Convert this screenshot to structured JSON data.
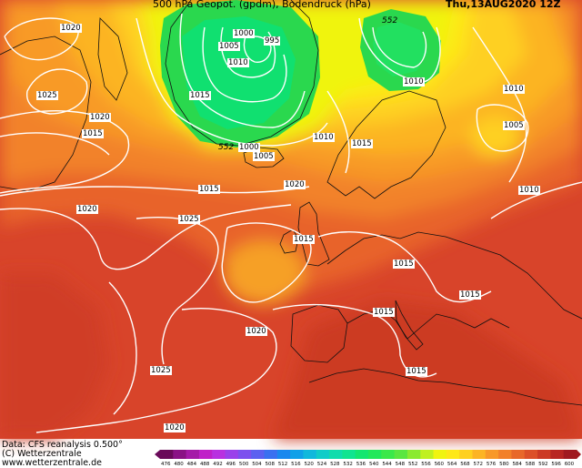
{
  "header": {
    "title": "500 hPa Geopot. (gpdm), Bodendruck (hPa)",
    "datetime": "Thu,13AUG2020 12Z"
  },
  "footer": {
    "data_source": "Data: CFS reanalysis 0.500°",
    "copyright": "(C) Wetterzentrale",
    "url": "www.wetterzentrale.de"
  },
  "isobar_labels": [
    {
      "text": "1020"
    },
    {
      "text": "1025"
    },
    {
      "text": "1020"
    },
    {
      "text": "1015"
    },
    {
      "text": "1000"
    },
    {
      "text": "1005"
    },
    {
      "text": "995"
    },
    {
      "text": "1010"
    },
    {
      "text": "1015"
    },
    {
      "text": "1000"
    },
    {
      "text": "1005"
    },
    {
      "text": "1010"
    },
    {
      "text": "1015"
    },
    {
      "text": "1010"
    },
    {
      "text": "1010"
    },
    {
      "text": "1005"
    },
    {
      "text": "1010"
    },
    {
      "text": "1020"
    },
    {
      "text": "1015"
    },
    {
      "text": "1020"
    },
    {
      "text": "1025"
    },
    {
      "text": "1015"
    },
    {
      "text": "1015"
    },
    {
      "text": "1015"
    },
    {
      "text": "1015"
    },
    {
      "text": "1020"
    },
    {
      "text": "1025"
    },
    {
      "text": "1015"
    },
    {
      "text": "1020"
    }
  ],
  "geopotential_labels": [
    {
      "text": "552"
    },
    {
      "text": "552"
    }
  ],
  "color_scale": {
    "ticks": [
      "476",
      "480",
      "484",
      "488",
      "492",
      "496",
      "500",
      "504",
      "508",
      "512",
      "516",
      "520",
      "524",
      "528",
      "532",
      "536",
      "540",
      "544",
      "548",
      "552",
      "556",
      "560",
      "564",
      "568",
      "572",
      "576",
      "580",
      "584",
      "588",
      "592",
      "596",
      "600"
    ],
    "colors": [
      "#6a0a5a",
      "#8a1285",
      "#a51aa8",
      "#c020c8",
      "#b830e0",
      "#9a40ea",
      "#7c50ee",
      "#5c60f0",
      "#3a70f0",
      "#1a88ee",
      "#10a0e8",
      "#10b8dc",
      "#10ccc8",
      "#10dcac",
      "#10e490",
      "#14e670",
      "#22e85a",
      "#3ae84a",
      "#5ae640",
      "#8aea30",
      "#c0f020",
      "#f0f410",
      "#fee818",
      "#fed020",
      "#fcb424",
      "#f89828",
      "#f2802a",
      "#e8682a",
      "#dc5028",
      "#cc3a24",
      "#b82622",
      "#a01a20"
    ]
  }
}
